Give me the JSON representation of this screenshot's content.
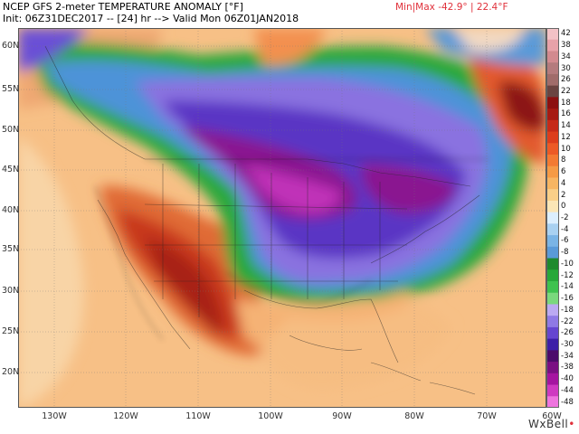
{
  "header": {
    "title_line1": "NCEP GFS 2-meter TEMPERATURE ANOMALY [°F]",
    "title_line2": "Init: 06Z31DEC2017 -- [24] hr --> Valid Mon 06Z01JAN2018",
    "minmax": "Min|Max -42.9° | 22.4°F"
  },
  "map": {
    "lat_labels": [
      "60N",
      "55N",
      "50N",
      "45N",
      "40N",
      "35N",
      "30N",
      "25N",
      "20N"
    ],
    "lon_labels": [
      "130W",
      "120W",
      "110W",
      "100W",
      "90W",
      "80W",
      "70W",
      "60W"
    ]
  },
  "colorbar": {
    "labels": [
      "42",
      "38",
      "34",
      "30",
      "26",
      "22",
      "18",
      "16",
      "14",
      "12",
      "10",
      "8",
      "6",
      "4",
      "2",
      "0",
      "-2",
      "-4",
      "-6",
      "-8",
      "-10",
      "-12",
      "-14",
      "-16",
      "-18",
      "-22",
      "-26",
      "-30",
      "-34",
      "-38",
      "-40",
      "-44",
      "-48"
    ],
    "colors": [
      "#f3c2c6",
      "#e7a2a9",
      "#d28a8f",
      "#b47b7d",
      "#a06c6a",
      "#6a4441",
      "#8c1010",
      "#a61a12",
      "#c52a18",
      "#dc3d1c",
      "#ec5a26",
      "#f37a32",
      "#f59a45",
      "#f7b562",
      "#f9cf88",
      "#fbe6b6",
      "#dcefff",
      "#a9d1f1",
      "#7ab4e5",
      "#5a9ad8",
      "#1f8a2e",
      "#27a83a",
      "#3ec24f",
      "#7ad87d",
      "#bba9f2",
      "#8f79e5",
      "#6545d0",
      "#3d1fa7",
      "#4c0b6b",
      "#7a0f83",
      "#a514a0",
      "#cf39c1",
      "#ee74de"
    ]
  },
  "branding": {
    "name": "WxBell"
  }
}
